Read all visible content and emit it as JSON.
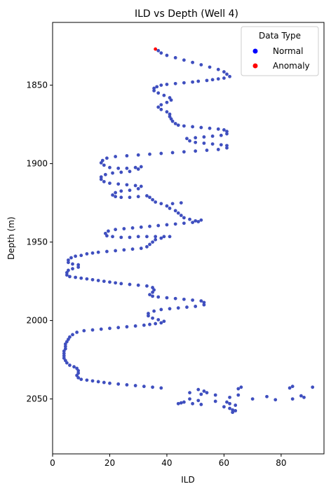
{
  "chart_data": {
    "type": "scatter",
    "title": "ILD vs Depth (Well 4)",
    "xlabel": "ILD",
    "ylabel": "Depth (m)",
    "xlim": [
      0,
      95
    ],
    "ylim": [
      2085,
      1810
    ],
    "y_inverted": true,
    "x_ticks": [
      0,
      20,
      40,
      60,
      80
    ],
    "y_ticks": [
      1850,
      1900,
      1950,
      2000,
      2050
    ],
    "grid": false,
    "legend": {
      "title": "Data Type",
      "placement": "top-right",
      "entries": [
        {
          "label": "Normal",
          "color": "#0000ff"
        },
        {
          "label": "Anomaly",
          "color": "#ff0000"
        }
      ]
    },
    "point_color": "#3f4fbf",
    "series": [
      {
        "name": "Normal",
        "points": [
          [
            37,
            1828
          ],
          [
            38,
            1829.5
          ],
          [
            40,
            1831
          ],
          [
            43,
            1832.5
          ],
          [
            46,
            1834
          ],
          [
            49,
            1835.5
          ],
          [
            52,
            1837
          ],
          [
            55,
            1838.5
          ],
          [
            58,
            1840
          ],
          [
            60,
            1841.5
          ],
          [
            61,
            1843
          ],
          [
            62,
            1844.5
          ],
          [
            60,
            1845.5
          ],
          [
            58,
            1846
          ],
          [
            56,
            1846.5
          ],
          [
            54,
            1847
          ],
          [
            51,
            1847.5
          ],
          [
            49,
            1848
          ],
          [
            46,
            1848.5
          ],
          [
            43,
            1849
          ],
          [
            40,
            1849.5
          ],
          [
            38,
            1850
          ],
          [
            36.5,
            1851
          ],
          [
            35.5,
            1852
          ],
          [
            35.5,
            1853.5
          ],
          [
            37,
            1855
          ],
          [
            39,
            1856.5
          ],
          [
            41,
            1858
          ],
          [
            41.5,
            1859.5
          ],
          [
            40,
            1861
          ],
          [
            38,
            1862.5
          ],
          [
            37,
            1864
          ],
          [
            38,
            1865.5
          ],
          [
            40,
            1867
          ],
          [
            41,
            1868.5
          ],
          [
            41,
            1870
          ],
          [
            41.5,
            1871.5
          ],
          [
            42,
            1873
          ],
          [
            43,
            1874.5
          ],
          [
            44,
            1875.5
          ],
          [
            46,
            1876
          ],
          [
            49,
            1876.5
          ],
          [
            52,
            1877
          ],
          [
            55,
            1877.5
          ],
          [
            58,
            1878
          ],
          [
            60,
            1878.5
          ],
          [
            61,
            1879.5
          ],
          [
            61,
            1881
          ],
          [
            59,
            1882
          ],
          [
            56,
            1882.5
          ],
          [
            53,
            1883
          ],
          [
            50,
            1883.5
          ],
          [
            47,
            1884
          ],
          [
            48,
            1885.5
          ],
          [
            50,
            1886.5
          ],
          [
            53,
            1887
          ],
          [
            56,
            1887.5
          ],
          [
            59,
            1888
          ],
          [
            61,
            1888.5
          ],
          [
            61,
            1890
          ],
          [
            58,
            1891
          ],
          [
            54,
            1891.5
          ],
          [
            50,
            1892
          ],
          [
            46,
            1892.5
          ],
          [
            42,
            1893
          ],
          [
            38,
            1893.5
          ],
          [
            34,
            1894
          ],
          [
            30,
            1894.5
          ],
          [
            26,
            1895
          ],
          [
            22,
            1895.5
          ],
          [
            19,
            1896.5
          ],
          [
            17.5,
            1898
          ],
          [
            17,
            1899.5
          ],
          [
            18,
            1901
          ],
          [
            20,
            1902.5
          ],
          [
            23,
            1903
          ],
          [
            26,
            1903
          ],
          [
            29,
            1902.5
          ],
          [
            31,
            1902
          ],
          [
            30,
            1903.5
          ],
          [
            27,
            1905
          ],
          [
            24,
            1905.5
          ],
          [
            21,
            1906
          ],
          [
            18.5,
            1907
          ],
          [
            17,
            1908.5
          ],
          [
            17,
            1910
          ],
          [
            18,
            1911.5
          ],
          [
            20,
            1912.5
          ],
          [
            23,
            1913
          ],
          [
            26,
            1913.5
          ],
          [
            29,
            1914
          ],
          [
            31,
            1914.5
          ],
          [
            30,
            1916
          ],
          [
            27,
            1917
          ],
          [
            24,
            1917.5
          ],
          [
            22,
            1918.5
          ],
          [
            21,
            1920
          ],
          [
            22,
            1921
          ],
          [
            24,
            1921.5
          ],
          [
            27,
            1921.5
          ],
          [
            30,
            1921
          ],
          [
            33,
            1920.5
          ],
          [
            34,
            1921.5
          ],
          [
            35,
            1923
          ],
          [
            36,
            1924.5
          ],
          [
            38,
            1925.5
          ],
          [
            42,
            1925.5
          ],
          [
            45,
            1925
          ],
          [
            40,
            1927
          ],
          [
            41,
            1928.5
          ],
          [
            43,
            1930
          ],
          [
            44,
            1931.5
          ],
          [
            45,
            1933
          ],
          [
            46,
            1934.5
          ],
          [
            48,
            1935.5
          ],
          [
            50,
            1936.5
          ],
          [
            52,
            1936
          ],
          [
            51,
            1937
          ],
          [
            49,
            1937.5
          ],
          [
            46,
            1938
          ],
          [
            43,
            1938.5
          ],
          [
            40,
            1939
          ],
          [
            37,
            1939.5
          ],
          [
            34,
            1940
          ],
          [
            31,
            1940.5
          ],
          [
            28,
            1941
          ],
          [
            25,
            1941.5
          ],
          [
            22,
            1942
          ],
          [
            19.5,
            1943
          ],
          [
            18.5,
            1944.5
          ],
          [
            19,
            1946
          ],
          [
            21,
            1946.5
          ],
          [
            24,
            1947
          ],
          [
            27,
            1947
          ],
          [
            30,
            1946.5
          ],
          [
            33,
            1946.5
          ],
          [
            36,
            1946.5
          ],
          [
            39,
            1946.5
          ],
          [
            41,
            1946.5
          ],
          [
            38,
            1947.5
          ],
          [
            36,
            1948.5
          ],
          [
            35,
            1950
          ],
          [
            34,
            1951.5
          ],
          [
            33,
            1953
          ],
          [
            31,
            1954
          ],
          [
            28,
            1954.5
          ],
          [
            25,
            1955
          ],
          [
            22,
            1955.5
          ],
          [
            19,
            1956
          ],
          [
            16,
            1956.5
          ],
          [
            14,
            1957
          ],
          [
            12,
            1957.5
          ],
          [
            10,
            1958.5
          ],
          [
            8,
            1959
          ],
          [
            6.5,
            1960
          ],
          [
            5.5,
            1961.5
          ],
          [
            5.5,
            1963
          ],
          [
            7,
            1964
          ],
          [
            9,
            1964.5
          ],
          [
            9,
            1966
          ],
          [
            7,
            1967
          ],
          [
            5.5,
            1968
          ],
          [
            5,
            1969.5
          ],
          [
            5,
            1971
          ],
          [
            6,
            1972
          ],
          [
            8,
            1972.5
          ],
          [
            10,
            1973
          ],
          [
            12,
            1973.5
          ],
          [
            14,
            1974
          ],
          [
            16,
            1974.5
          ],
          [
            18,
            1975
          ],
          [
            20,
            1975.5
          ],
          [
            22,
            1976
          ],
          [
            24,
            1976.5
          ],
          [
            27,
            1977
          ],
          [
            30,
            1977.5
          ],
          [
            33,
            1978
          ],
          [
            35,
            1979
          ],
          [
            35.5,
            1980.5
          ],
          [
            35,
            1982
          ],
          [
            34,
            1983.5
          ],
          [
            35,
            1984.5
          ],
          [
            37,
            1985
          ],
          [
            40,
            1985.5
          ],
          [
            43,
            1986
          ],
          [
            46,
            1986.5
          ],
          [
            49,
            1987
          ],
          [
            52,
            1987.5
          ],
          [
            53,
            1988.5
          ],
          [
            53,
            1990
          ],
          [
            50,
            1991
          ],
          [
            47,
            1991.5
          ],
          [
            44,
            1992
          ],
          [
            41,
            1992.5
          ],
          [
            38,
            1993
          ],
          [
            35.5,
            1994
          ],
          [
            33.5,
            1995.5
          ],
          [
            33.5,
            1997
          ],
          [
            35,
            1998.5
          ],
          [
            37,
            1999.5
          ],
          [
            39,
            2000.5
          ],
          [
            38,
            2001.5
          ],
          [
            36,
            2002
          ],
          [
            34,
            2002.5
          ],
          [
            32,
            2003
          ],
          [
            29,
            2003.5
          ],
          [
            26,
            2004
          ],
          [
            23,
            2004.5
          ],
          [
            20,
            2005
          ],
          [
            17,
            2005.5
          ],
          [
            14,
            2006
          ],
          [
            11,
            2006.5
          ],
          [
            8.5,
            2007.5
          ],
          [
            7,
            2009
          ],
          [
            6,
            2010.5
          ],
          [
            5.5,
            2012
          ],
          [
            5,
            2013.5
          ],
          [
            4.5,
            2015
          ],
          [
            4.5,
            2016.5
          ],
          [
            4.5,
            2018
          ],
          [
            4,
            2019.5
          ],
          [
            4,
            2021
          ],
          [
            4,
            2022.5
          ],
          [
            4,
            2024
          ],
          [
            4.5,
            2025.5
          ],
          [
            5,
            2027
          ],
          [
            6,
            2028.5
          ],
          [
            7.5,
            2029.5
          ],
          [
            8.5,
            2030.5
          ],
          [
            9,
            2032
          ],
          [
            9,
            2033.5
          ],
          [
            8.5,
            2035
          ],
          [
            9,
            2036.5
          ],
          [
            10,
            2037.5
          ],
          [
            12,
            2038
          ],
          [
            14,
            2038.5
          ],
          [
            16,
            2039
          ],
          [
            18,
            2039.5
          ],
          [
            20,
            2040
          ],
          [
            23,
            2040.5
          ],
          [
            26,
            2041
          ],
          [
            29,
            2041.5
          ],
          [
            32,
            2042
          ],
          [
            35,
            2042.5
          ],
          [
            38,
            2043
          ],
          [
            51,
            2044
          ],
          [
            65,
            2043.5
          ],
          [
            66,
            2042.5
          ],
          [
            83,
            2043
          ],
          [
            84,
            2042
          ],
          [
            91,
            2042.5
          ],
          [
            53,
            2045
          ],
          [
            54,
            2046
          ],
          [
            52,
            2047
          ],
          [
            48,
            2046
          ],
          [
            57,
            2047.5
          ],
          [
            62,
            2049
          ],
          [
            65,
            2047.5
          ],
          [
            70,
            2050
          ],
          [
            75,
            2048.5
          ],
          [
            78,
            2050.5
          ],
          [
            87,
            2048
          ],
          [
            88,
            2049
          ],
          [
            84,
            2050
          ],
          [
            48,
            2050
          ],
          [
            51,
            2051
          ],
          [
            57,
            2051.5
          ],
          [
            46,
            2052
          ],
          [
            45,
            2052.5
          ],
          [
            44,
            2053
          ],
          [
            49,
            2053
          ],
          [
            52,
            2053.5
          ],
          [
            61,
            2052
          ],
          [
            62,
            2053
          ],
          [
            64,
            2054
          ],
          [
            62,
            2056
          ],
          [
            63,
            2057
          ],
          [
            64,
            2057.5
          ],
          [
            63,
            2058.5
          ],
          [
            60,
            2055
          ]
        ]
      },
      {
        "name": "Anomaly",
        "points": [
          [
            36,
            1827
          ]
        ]
      }
    ]
  }
}
